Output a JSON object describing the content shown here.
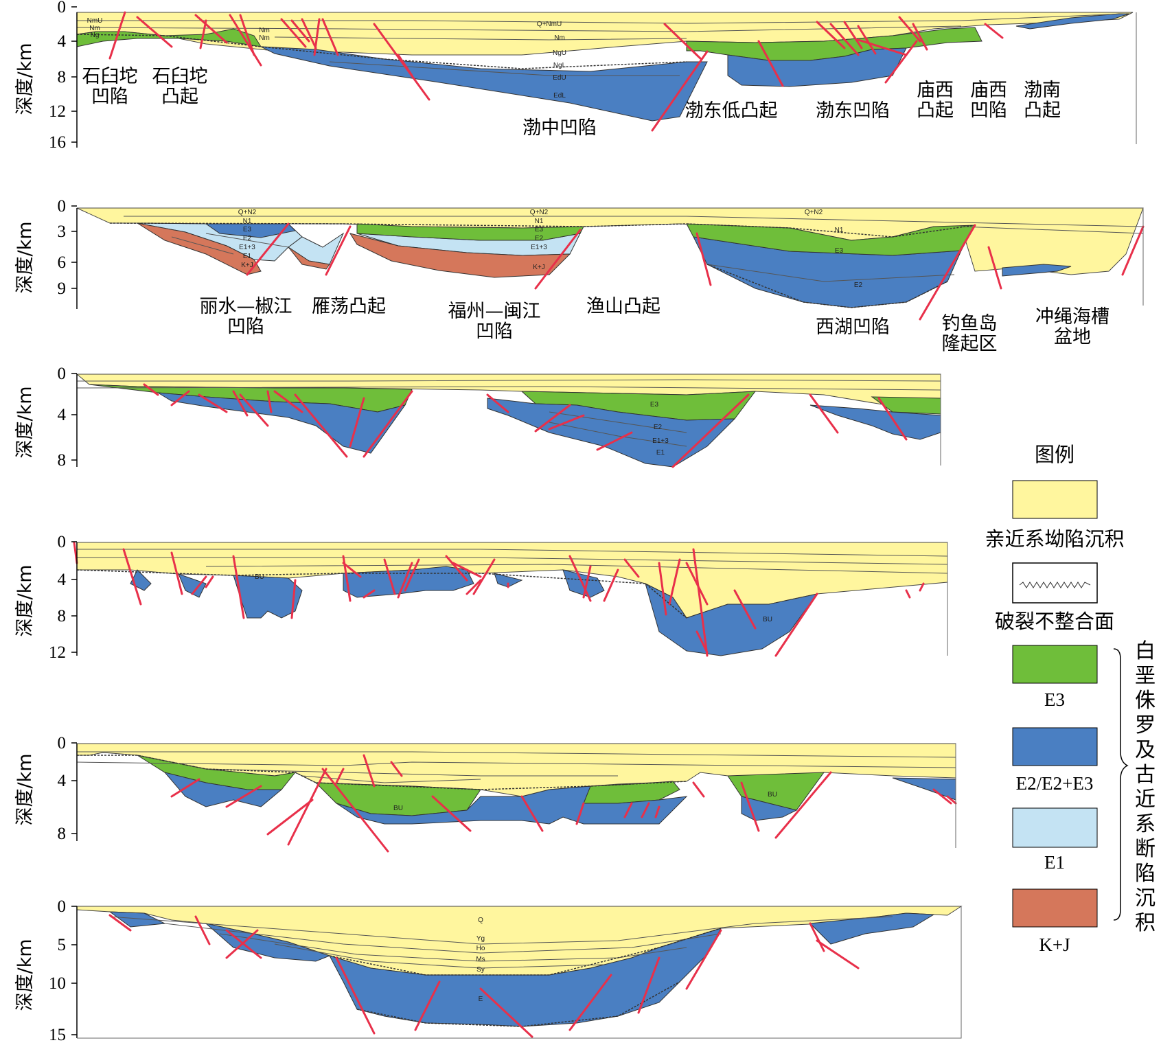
{
  "y_axis_label": "深度/km",
  "sections": [
    {
      "ticks": [
        "0",
        "4",
        "8",
        "12",
        "16"
      ],
      "strata": [
        "NmU",
        "Nm",
        "Ng",
        "Nm",
        "Nm",
        "Q+NmU",
        "Nm",
        "NgU",
        "NgL",
        "EdU",
        "EdL"
      ],
      "regions": [
        "石臼坨\n凹陷",
        "石臼坨\n凸起",
        "渤中凹陷",
        "渤东低凸起",
        "渤东凹陷",
        "庙西\n凸起",
        "庙西\n凹陷",
        "渤南\n凸起"
      ]
    },
    {
      "ticks": [
        "0",
        "3",
        "6",
        "9"
      ],
      "strata": [
        "Q+N2",
        "N1",
        "E3",
        "E2",
        "E1+3",
        "E1",
        "K+J",
        "Q+N2",
        "N1",
        "E3",
        "E2",
        "E1+3",
        "K+J",
        "Q+N2",
        "N1",
        "E3",
        "E2"
      ],
      "regions": [
        "丽水—椒江\n凹陷",
        "雁荡凸起",
        "福州—闽江\n凹陷",
        "渔山凸起",
        "西湖凹陷",
        "钓鱼岛\n隆起区",
        "冲绳海槽\n盆地"
      ]
    },
    {
      "ticks": [
        "0",
        "4",
        "8"
      ],
      "strata": [
        "E3",
        "E2",
        "E1+3",
        "E1"
      ]
    },
    {
      "ticks": [
        "0",
        "4",
        "8",
        "12"
      ],
      "strata": [
        "BU",
        "BU"
      ]
    },
    {
      "ticks": [
        "0",
        "4",
        "8"
      ],
      "strata": [
        "BU",
        "BU"
      ]
    },
    {
      "ticks": [
        "0",
        "5",
        "10",
        "15"
      ],
      "strata": [
        "Q",
        "Yg",
        "Ho",
        "Ms",
        "Sy",
        "E"
      ]
    }
  ],
  "legend": {
    "title": "图例",
    "items": [
      {
        "label": "亲近系坳陷沉积",
        "color": "#fff69e"
      },
      {
        "label": "破裂不整合面",
        "color": "#ffffff"
      },
      {
        "label": "E3",
        "color": "#6fbe3a"
      },
      {
        "label": "E2/E2+E3",
        "color": "#4a7fc2"
      },
      {
        "label": "E1",
        "color": "#c4e3f3"
      },
      {
        "label": "K+J",
        "color": "#d5775b"
      }
    ],
    "brace_label": "白垩侏罗及古近系断陷沉积"
  }
}
